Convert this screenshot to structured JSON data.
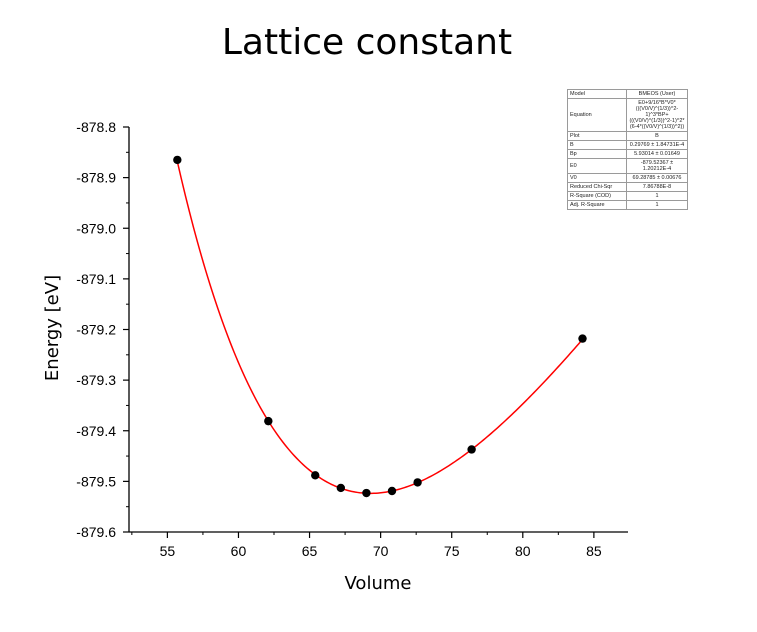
{
  "chart_data": {
    "type": "scatter",
    "title": "Lattice constant",
    "xlabel": "Volume",
    "ylabel": "Energy [eV]",
    "xlim": [
      52.3,
      87.4
    ],
    "ylim": [
      -879.6,
      -878.8
    ],
    "x_ticks": [
      55,
      60,
      65,
      70,
      75,
      80,
      85
    ],
    "y_ticks": [
      -878.8,
      -878.9,
      -879.0,
      -879.1,
      -879.2,
      -879.3,
      -879.4,
      -879.5,
      -879.6
    ],
    "y_tick_labels": [
      "-878.8",
      "-878.9",
      "-879.0",
      "-879.1",
      "-879.2",
      "-879.3",
      "-879.4",
      "-879.5",
      "-879.6"
    ],
    "grid": false,
    "legend": "none",
    "colors": {
      "points": "#000000",
      "fit": "#ff0000"
    },
    "series": [
      {
        "points": [
          {
            "x": 55.7,
            "y": -878.865
          },
          {
            "x": 62.1,
            "y": -879.381
          },
          {
            "x": 65.4,
            "y": -879.488
          },
          {
            "x": 67.2,
            "y": -879.513
          },
          {
            "x": 69.0,
            "y": -879.523
          },
          {
            "x": 70.8,
            "y": -879.519
          },
          {
            "x": 72.6,
            "y": -879.502
          },
          {
            "x": 76.4,
            "y": -879.437
          },
          {
            "x": 84.2,
            "y": -879.218
          }
        ]
      }
    ],
    "fit": {
      "model": "BMEOS",
      "B": 0.29769,
      "Bp": 5.93014,
      "E0": -879.52367,
      "V0": 69.28785
    }
  },
  "fit_table": {
    "rows": [
      {
        "key": "Model",
        "value": "BMEOS (User)"
      },
      {
        "key": "Equation",
        "value": "E0+9/16*B*V0*(((V0/V)^(1/3))^2-1)^3*BP+(((V0/V)^(1/3))^2-1)^2*(6-4*((V0/V)^(1/3))^2))"
      },
      {
        "key": "Plot",
        "value": "B"
      },
      {
        "key": "B",
        "value": "0.29769 ± 1.84731E-4"
      },
      {
        "key": "Bp",
        "value": "5.93014 ± 0.01649"
      },
      {
        "key": "E0",
        "value": "-879.52367 ± 1.20212E-4"
      },
      {
        "key": "V0",
        "value": "69.28785 ± 0.00676"
      },
      {
        "key": "Reduced Chi-Sqr",
        "value": "7.86788E-8"
      },
      {
        "key": "R-Square (COD)",
        "value": "1"
      },
      {
        "key": "Adj. R-Square",
        "value": "1"
      }
    ]
  }
}
